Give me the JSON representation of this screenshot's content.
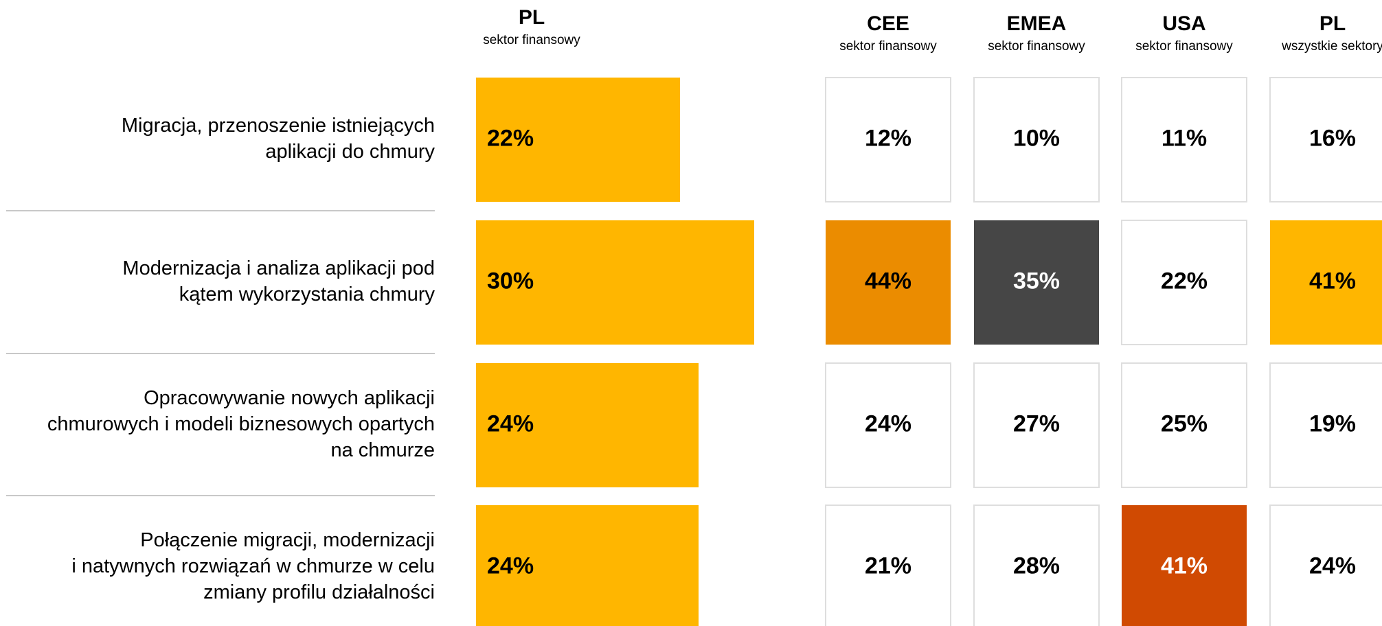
{
  "chart_data": {
    "type": "bar",
    "categories": [
      [
        "Migracja, przenoszenie istniejących",
        "aplikacji do chmury"
      ],
      [
        "Modernizacja i analiza aplikacji pod",
        "kątem wykorzystania chmury"
      ],
      [
        "Opracowywanie nowych aplikacji",
        "chmurowych i modeli biznesowych opartych",
        "na chmurze"
      ],
      [
        "Połączenie migracji, modernizacji",
        "i natywnych rozwiązań w chmurze w celu",
        "zmiany profilu działalności"
      ]
    ],
    "series": [
      {
        "name": "PL",
        "subtitle": "sektor finansowy",
        "color": "#ffb600",
        "values": [
          22,
          30,
          24,
          24
        ],
        "value_labels": [
          "22%",
          "30%",
          "24%",
          "24%"
        ]
      }
    ]
  },
  "table": {
    "columns": [
      {
        "name": "CEE",
        "subtitle": "sektor finansowy"
      },
      {
        "name": "EMEA",
        "subtitle": "sektor finansowy"
      },
      {
        "name": "USA",
        "subtitle": "sektor finansowy"
      },
      {
        "name": "PL",
        "subtitle": "wszystkie sektory"
      }
    ],
    "rows": [
      [
        12,
        10,
        11,
        16
      ],
      [
        44,
        35,
        22,
        41
      ],
      [
        24,
        27,
        25,
        19
      ],
      [
        21,
        28,
        41,
        24
      ]
    ],
    "value_labels": [
      [
        "12%",
        "10%",
        "11%",
        "16%"
      ],
      [
        "44%",
        "35%",
        "22%",
        "41%"
      ],
      [
        "24%",
        "27%",
        "25%",
        "19%"
      ],
      [
        "21%",
        "28%",
        "41%",
        "24%"
      ]
    ],
    "colors": [
      [
        "#ffffff",
        "#ffffff",
        "#ffffff",
        "#ffffff"
      ],
      [
        "#eb8c00",
        "#464646",
        "#ffffff",
        "#ffb600"
      ],
      [
        "#ffffff",
        "#ffffff",
        "#ffffff",
        "#ffffff"
      ],
      [
        "#ffffff",
        "#ffffff",
        "#d04a02",
        "#ffffff"
      ]
    ]
  }
}
